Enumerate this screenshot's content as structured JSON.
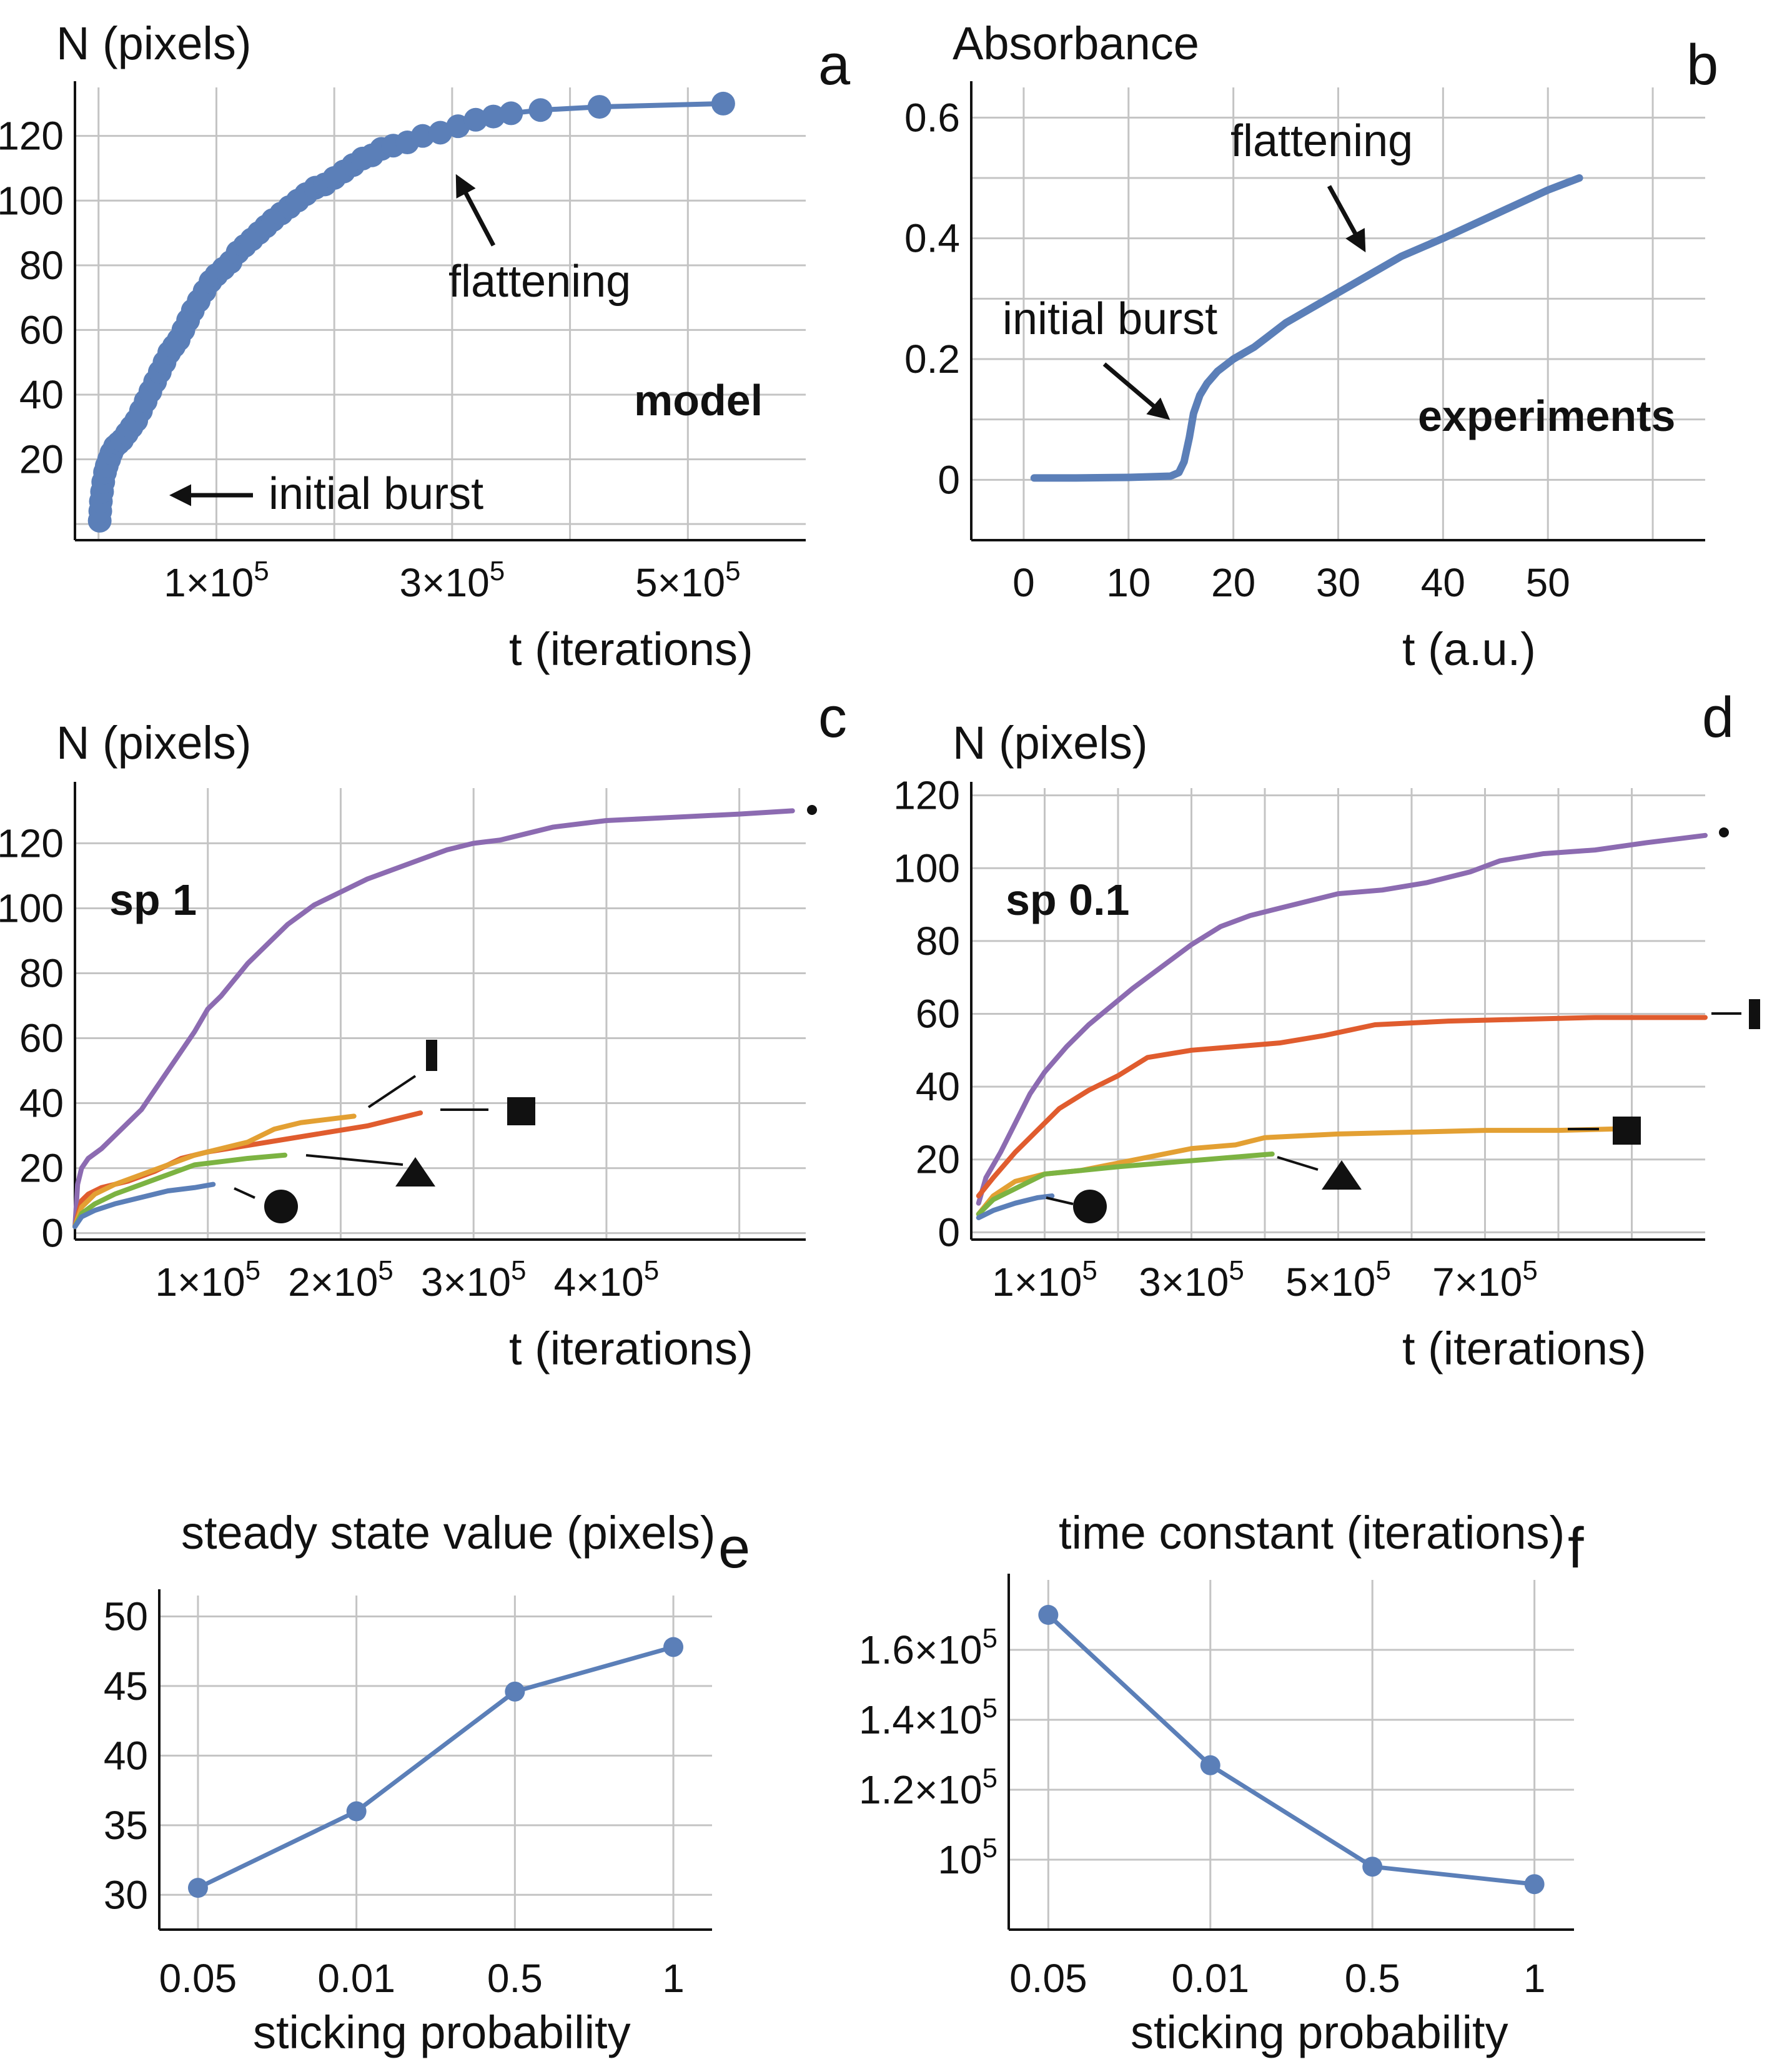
{
  "chart_data": [
    {
      "id": "a",
      "type": "scatter",
      "panel_letter": "a",
      "ylabel": "N (pixels)",
      "xlabel": "t (iterations)",
      "xlim": [
        -20000,
        600000
      ],
      "ylim": [
        -5,
        135
      ],
      "x_ticks": [
        {
          "value": 100000,
          "label": "1×10",
          "exp": "5"
        },
        {
          "value": 300000,
          "label": "3×10",
          "exp": "5"
        },
        {
          "value": 500000,
          "label": "5×10",
          "exp": "5"
        }
      ],
      "x_grid": [
        0,
        100000,
        200000,
        300000,
        400000,
        500000
      ],
      "y_ticks": [
        20,
        40,
        60,
        80,
        100,
        120
      ],
      "y_grid": [
        0,
        20,
        40,
        60,
        80,
        100,
        120
      ],
      "series": [
        {
          "name": "model",
          "color": "#5b7fb8",
          "x": [
            1000,
            1500,
            2000,
            3000,
            4000,
            5500,
            7000,
            9000,
            11000,
            14000,
            17000,
            20000,
            24000,
            28000,
            32000,
            36000,
            40000,
            44000,
            48000,
            52000,
            56000,
            60000,
            64000,
            68000,
            72000,
            76000,
            80000,
            85000,
            90000,
            95000,
            100000,
            106000,
            112000,
            118000,
            124000,
            130000,
            136000,
            142000,
            148000,
            155000,
            162000,
            169000,
            176000,
            184000,
            192000,
            200000,
            208000,
            216000,
            224000,
            232000,
            240000,
            250000,
            262000,
            275000,
            290000,
            305000,
            320000,
            335000,
            350000,
            375000,
            425000,
            530000
          ],
          "y": [
            1,
            4,
            7,
            10,
            13,
            16,
            18,
            20,
            22,
            24,
            25,
            26,
            28,
            30,
            32,
            35,
            38,
            41,
            44,
            47,
            50,
            53,
            55,
            57,
            60,
            63,
            66,
            69,
            72,
            75,
            77,
            79,
            81,
            84,
            86,
            88,
            90,
            92,
            94,
            96,
            98,
            100,
            102,
            104,
            105,
            107,
            109,
            111,
            113,
            114,
            116,
            117,
            118,
            120,
            121,
            123,
            125,
            126,
            127,
            128,
            129,
            130
          ]
        }
      ],
      "annotations": [
        "initial burst",
        "flattening",
        "model"
      ]
    },
    {
      "id": "b",
      "type": "line",
      "panel_letter": "b",
      "ylabel": "Absorbance",
      "xlabel": "t (a.u.)",
      "xlim": [
        -5,
        65
      ],
      "ylim": [
        -0.1,
        0.65
      ],
      "x_ticks": [
        0,
        10,
        20,
        30,
        40,
        50
      ],
      "x_grid": [
        0,
        10,
        20,
        30,
        40,
        50,
        60
      ],
      "y_ticks": [
        0,
        0.2,
        0.4,
        0.6
      ],
      "y_grid": [
        0,
        0.1,
        0.2,
        0.3,
        0.4,
        0.5,
        0.6
      ],
      "series": [
        {
          "name": "experiments",
          "color": "#5b7fb8",
          "x": [
            1,
            5,
            10,
            14,
            14.8,
            15.3,
            15.8,
            16.2,
            16.8,
            17.5,
            18.5,
            20,
            22,
            25,
            28,
            32,
            36,
            40,
            45,
            50,
            53
          ],
          "y": [
            0.003,
            0.003,
            0.004,
            0.006,
            0.012,
            0.03,
            0.07,
            0.11,
            0.14,
            0.16,
            0.18,
            0.2,
            0.22,
            0.26,
            0.29,
            0.33,
            0.37,
            0.4,
            0.44,
            0.48,
            0.5
          ]
        }
      ],
      "annotations": [
        "flattening",
        "initial burst",
        "experiments"
      ]
    },
    {
      "id": "c",
      "type": "line",
      "panel_letter": "c",
      "ylabel": "N (pixels)",
      "xlabel": "t (iterations)",
      "xlim": [
        0,
        550000
      ],
      "ylim": [
        -2,
        137
      ],
      "x_ticks": [
        {
          "value": 100000,
          "label": "1×10",
          "exp": "5"
        },
        {
          "value": 200000,
          "label": "2×10",
          "exp": "5"
        },
        {
          "value": 300000,
          "label": "3×10",
          "exp": "5"
        },
        {
          "value": 400000,
          "label": "4×10",
          "exp": "5"
        }
      ],
      "x_grid": [
        100000,
        200000,
        300000,
        400000,
        500000
      ],
      "y_ticks": [
        0,
        20,
        40,
        60,
        80,
        100,
        120
      ],
      "y_grid": [
        0,
        20,
        40,
        60,
        80,
        100,
        120
      ],
      "series": [
        {
          "name": "purple",
          "color": "#8c6bb1",
          "x": [
            0,
            2000,
            5000,
            10000,
            20000,
            30000,
            40000,
            50000,
            60000,
            70000,
            80000,
            90000,
            100000,
            110000,
            120000,
            130000,
            140000,
            150000,
            160000,
            170000,
            180000,
            190000,
            200000,
            220000,
            240000,
            260000,
            280000,
            300000,
            320000,
            340000,
            360000,
            400000,
            450000,
            500000,
            540000
          ],
          "y": [
            2,
            15,
            20,
            23,
            26,
            30,
            34,
            38,
            44,
            50,
            56,
            62,
            69,
            73,
            78,
            83,
            87,
            91,
            95,
            98,
            101,
            103,
            105,
            109,
            112,
            115,
            118,
            120,
            121,
            123,
            125,
            127,
            128,
            129,
            130
          ]
        },
        {
          "name": "orange",
          "color": "#e05c2e",
          "x": [
            0,
            5000,
            10000,
            20000,
            40000,
            60000,
            80000,
            100000,
            130000,
            160000,
            190000,
            220000,
            240000,
            260000
          ],
          "y": [
            2,
            10,
            12,
            14,
            16,
            19,
            23,
            25,
            27,
            29,
            31,
            33,
            35,
            37
          ]
        },
        {
          "name": "yellow",
          "color": "#e3a033",
          "x": [
            0,
            5000,
            15000,
            30000,
            50000,
            70000,
            90000,
            110000,
            130000,
            150000,
            170000,
            190000,
            210000
          ],
          "y": [
            2,
            8,
            12,
            15,
            18,
            21,
            24,
            26,
            28,
            32,
            34,
            35,
            36
          ]
        },
        {
          "name": "green",
          "color": "#7cb342",
          "x": [
            0,
            5000,
            15000,
            30000,
            50000,
            70000,
            90000,
            110000,
            130000,
            158000
          ],
          "y": [
            2,
            6,
            9,
            12,
            15,
            18,
            21,
            22,
            23,
            24
          ]
        },
        {
          "name": "blue",
          "color": "#5b7fb8",
          "x": [
            0,
            5000,
            15000,
            30000,
            50000,
            70000,
            90000,
            104000
          ],
          "y": [
            2,
            5,
            7,
            9,
            11,
            13,
            14,
            15
          ]
        }
      ],
      "annotations": [
        "sp 1"
      ]
    },
    {
      "id": "d",
      "type": "line",
      "panel_letter": "d",
      "ylabel": "N (pixels)",
      "xlabel": "t (iterations)",
      "xlim": [
        0,
        1000000
      ],
      "ylim": [
        -2,
        122
      ],
      "x_ticks": [
        {
          "value": 100000,
          "label": "1×10",
          "exp": "5"
        },
        {
          "value": 300000,
          "label": "3×10",
          "exp": "5"
        },
        {
          "value": 500000,
          "label": "5×10",
          "exp": "5"
        },
        {
          "value": 700000,
          "label": "7×10",
          "exp": "5"
        }
      ],
      "x_grid": [
        100000,
        200000,
        300000,
        400000,
        500000,
        600000,
        700000,
        800000,
        900000
      ],
      "y_ticks": [
        0,
        20,
        40,
        60,
        80,
        100,
        120
      ],
      "y_grid": [
        0,
        20,
        40,
        60,
        80,
        100,
        120
      ],
      "series": [
        {
          "name": "purple",
          "color": "#8c6bb1",
          "x": [
            10000,
            20000,
            40000,
            60000,
            80000,
            100000,
            130000,
            160000,
            190000,
            220000,
            260000,
            300000,
            340000,
            380000,
            420000,
            460000,
            500000,
            560000,
            620000,
            680000,
            720000,
            780000,
            850000,
            920000,
            1000000
          ],
          "y": [
            8,
            15,
            22,
            30,
            38,
            44,
            51,
            57,
            62,
            67,
            73,
            79,
            84,
            87,
            89,
            91,
            93,
            94,
            96,
            99,
            102,
            104,
            105,
            107,
            109
          ]
        },
        {
          "name": "orange",
          "color": "#e05c2e",
          "x": [
            10000,
            30000,
            60000,
            90000,
            120000,
            160000,
            200000,
            240000,
            300000,
            360000,
            420000,
            480000,
            550000,
            650000,
            750000,
            850000,
            1000000
          ],
          "y": [
            10,
            15,
            22,
            28,
            34,
            39,
            43,
            48,
            50,
            51,
            52,
            54,
            57,
            58,
            58.5,
            59,
            59
          ]
        },
        {
          "name": "yellow",
          "color": "#e3a033",
          "x": [
            10000,
            30000,
            60000,
            100000,
            150000,
            200000,
            250000,
            300000,
            360000,
            400000,
            500000,
            600000,
            700000,
            800000,
            900000
          ],
          "y": [
            5,
            10,
            14,
            16,
            17,
            19,
            21,
            23,
            24,
            26,
            27,
            27.5,
            28,
            28,
            28.5
          ]
        },
        {
          "name": "green",
          "color": "#7cb342",
          "x": [
            10000,
            30000,
            60000,
            100000,
            150000,
            200000,
            260000,
            320000,
            380000,
            410000
          ],
          "y": [
            5,
            9,
            12,
            16,
            17,
            18,
            19,
            20,
            21,
            21.5
          ]
        },
        {
          "name": "blue",
          "color": "#5b7fb8",
          "x": [
            10000,
            30000,
            60000,
            90000,
            110000
          ],
          "y": [
            4,
            6,
            8,
            9.5,
            10
          ]
        }
      ],
      "annotations": [
        "sp 0.1"
      ]
    },
    {
      "id": "e",
      "type": "line",
      "panel_letter": "e",
      "title": "steady state value (pixels)",
      "xlabel": "sticking probability",
      "categories": [
        "0.05",
        "0.01",
        "0.5",
        "1"
      ],
      "values": [
        30.5,
        36,
        44.6,
        47.8
      ],
      "ylim": [
        27.5,
        51.5
      ],
      "y_ticks": [
        30,
        35,
        40,
        45,
        50
      ],
      "y_grid": [
        30,
        35,
        40,
        45,
        50
      ],
      "color": "#5b7fb8"
    },
    {
      "id": "f",
      "type": "line",
      "panel_letter": "f",
      "title": "time constant (iterations)",
      "xlabel": "sticking probability",
      "categories": [
        "0.05",
        "0.01",
        "0.5",
        "1"
      ],
      "values": [
        170000,
        127000,
        98000,
        93000
      ],
      "ylim": [
        80000,
        180000
      ],
      "y_ticks": [
        {
          "value": 100000,
          "label": "10",
          "exp": "5"
        },
        {
          "value": 120000,
          "label": "1.2×10",
          "exp": "5"
        },
        {
          "value": 140000,
          "label": "1.4×10",
          "exp": "5"
        },
        {
          "value": 160000,
          "label": "1.6×10",
          "exp": "5"
        }
      ],
      "y_grid": [
        100000,
        120000,
        140000,
        160000
      ],
      "color": "#5b7fb8"
    }
  ]
}
